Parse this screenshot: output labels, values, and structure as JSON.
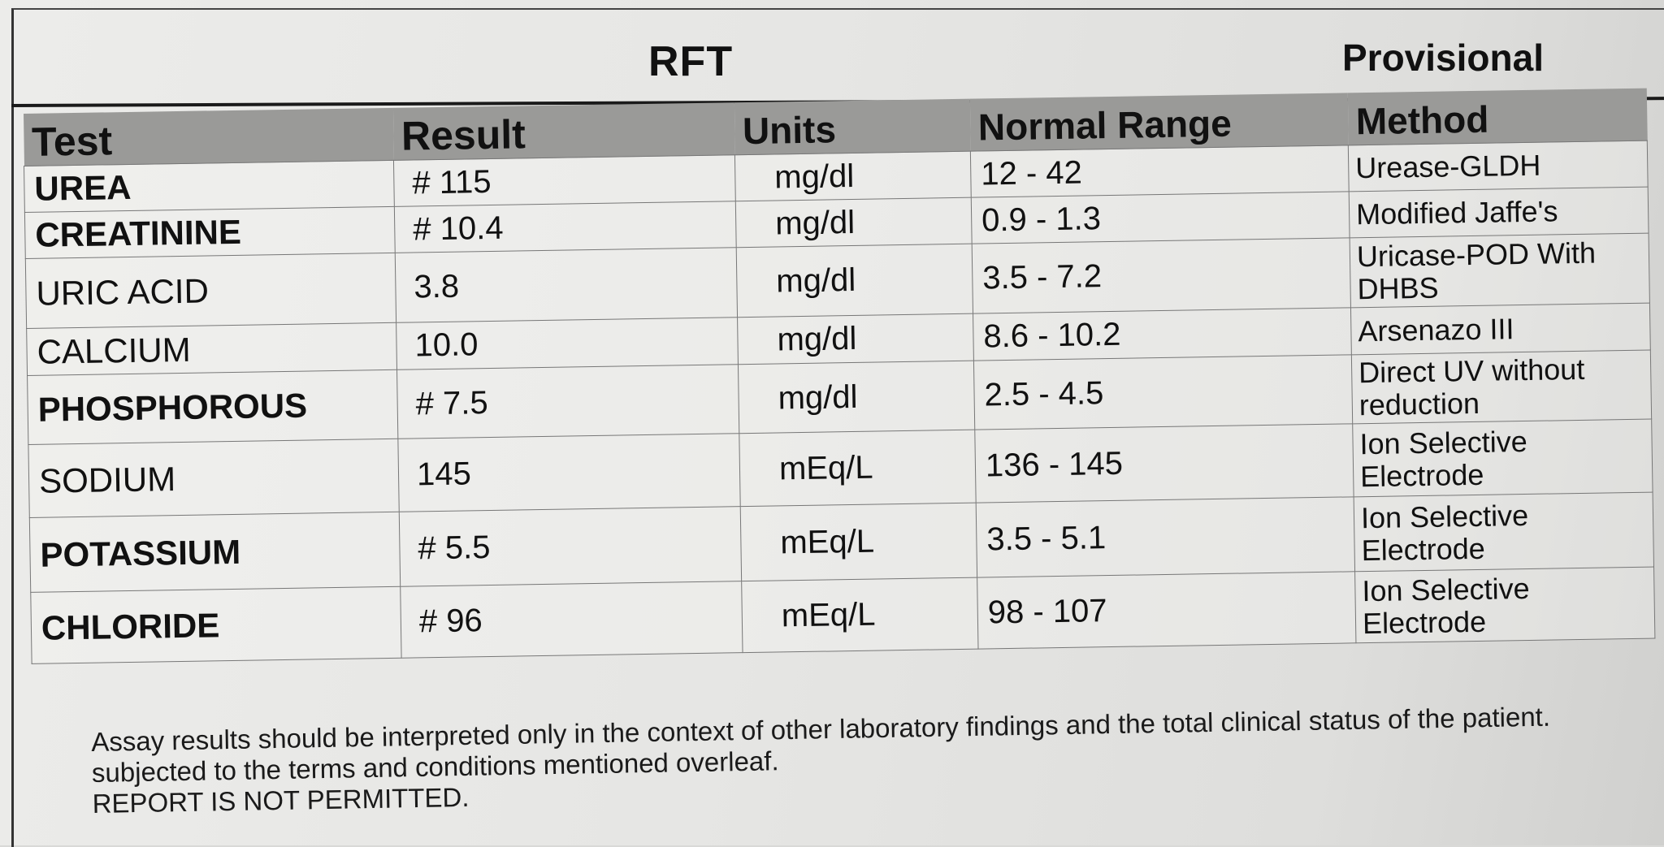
{
  "report": {
    "title": "RFT",
    "status": "Provisional"
  },
  "table": {
    "headers": {
      "test": "Test",
      "result": "Result",
      "units": "Units",
      "range": "Normal Range",
      "method": "Method"
    },
    "rows": [
      {
        "test": "UREA",
        "result": "# 115",
        "units": "mg/dl",
        "range": "12 - 42",
        "method": "Urease-GLDH"
      },
      {
        "test": "CREATININE",
        "result": "# 10.4",
        "units": "mg/dl",
        "range": "0.9 - 1.3",
        "method": "Modified Jaffe's"
      },
      {
        "test": "URIC ACID",
        "result": "3.8",
        "units": "mg/dl",
        "range": "3.5 - 7.2",
        "method": "Uricase-POD With DHBS"
      },
      {
        "test": "CALCIUM",
        "result": "10.0",
        "units": "mg/dl",
        "range": "8.6 - 10.2",
        "method": "Arsenazo III"
      },
      {
        "test": "PHOSPHOROUS",
        "result": "# 7.5",
        "units": "mg/dl",
        "range": "2.5 - 4.5",
        "method": "Direct UV without reduction"
      },
      {
        "test": "SODIUM",
        "result": "145",
        "units": "mEq/L",
        "range": "136 - 145",
        "method": "Ion Selective Electrode"
      },
      {
        "test": "POTASSIUM",
        "result": "# 5.5",
        "units": "mEq/L",
        "range": "3.5 - 5.1",
        "method": "Ion Selective Electrode"
      },
      {
        "test": "CHLORIDE",
        "result": "# 96",
        "units": "mEq/L",
        "range": "98 - 107",
        "method": "Ion Selective Electrode"
      }
    ]
  },
  "footer": {
    "line1": "Assay results should be interpreted only in the context of other laboratory findings and the total clinical status of the patient.",
    "line2": "subjected to the terms and conditions mentioned overleaf.",
    "line3": "REPORT IS NOT PERMITTED."
  }
}
